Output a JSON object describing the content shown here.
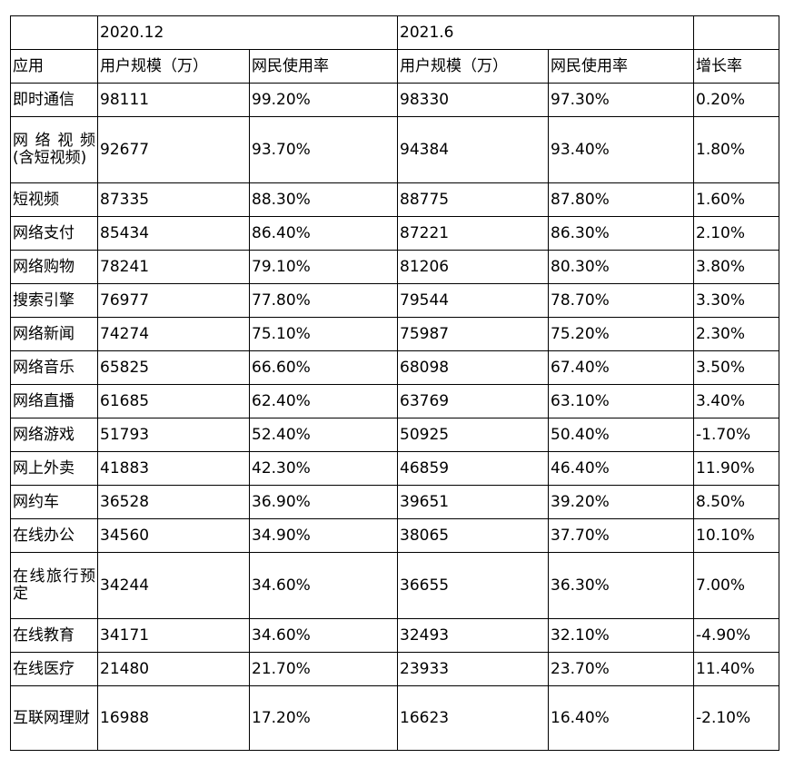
{
  "table": {
    "period_row": [
      "",
      "2020.12",
      "2021.6",
      ""
    ],
    "header": [
      "应用",
      "用户规模（万）",
      "网民使用率",
      "用户规模（万）",
      "网民使用率",
      "增长率"
    ],
    "rows": [
      [
        "即时通信",
        "98111",
        "99.20%",
        "98330",
        "97.30%",
        "0.20%"
      ],
      [
        "网络视频(含短视频)",
        "92677",
        "93.70%",
        "94384",
        "93.40%",
        "1.80%"
      ],
      [
        "短视频",
        "87335",
        "88.30%",
        "88775",
        "87.80%",
        "1.60%"
      ],
      [
        "网络支付",
        "85434",
        "86.40%",
        "87221",
        "86.30%",
        "2.10%"
      ],
      [
        "网络购物",
        "78241",
        "79.10%",
        "81206",
        "80.30%",
        "3.80%"
      ],
      [
        "搜索引擎",
        "76977",
        "77.80%",
        "79544",
        "78.70%",
        "3.30%"
      ],
      [
        "网络新闻",
        "74274",
        "75.10%",
        "75987",
        "75.20%",
        "2.30%"
      ],
      [
        "网络音乐",
        "65825",
        "66.60%",
        "68098",
        "67.40%",
        "3.50%"
      ],
      [
        "网络直播",
        "61685",
        "62.40%",
        "63769",
        "63.10%",
        "3.40%"
      ],
      [
        "网络游戏",
        "51793",
        "52.40%",
        "50925",
        "50.40%",
        "-1.70%"
      ],
      [
        "网上外卖",
        "41883",
        "42.30%",
        "46859",
        "46.40%",
        "11.90%"
      ],
      [
        "网约车",
        "36528",
        "36.90%",
        "39651",
        "39.20%",
        "8.50%"
      ],
      [
        "在线办公",
        "34560",
        "34.90%",
        "38065",
        "37.70%",
        "10.10%"
      ],
      [
        "在线旅行预定",
        "34244",
        "34.60%",
        "36655",
        "36.30%",
        "7.00%"
      ],
      [
        "在线教育",
        "34171",
        "34.60%",
        "32493",
        "32.10%",
        "-4.90%"
      ],
      [
        "在线医疗",
        "21480",
        "21.70%",
        "23933",
        "23.70%",
        "11.40%"
      ],
      [
        "互联网理财",
        "16988",
        "17.20%",
        "16623",
        "16.40%",
        "-2.10%"
      ]
    ]
  }
}
